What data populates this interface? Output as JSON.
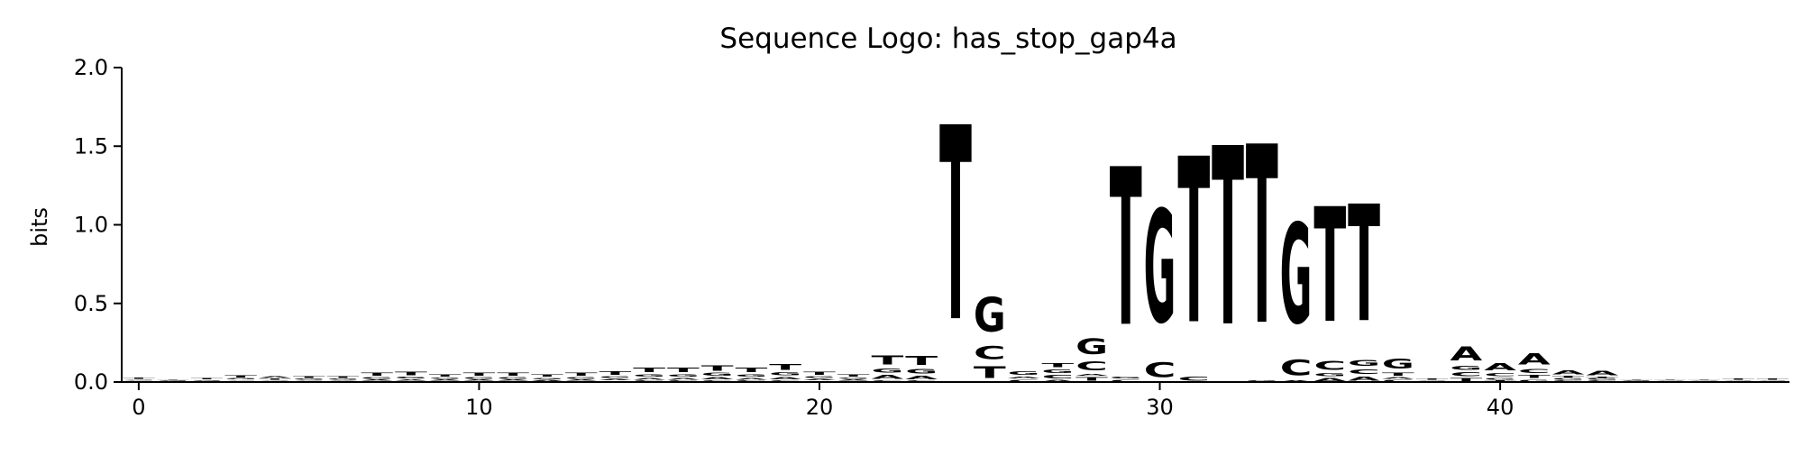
{
  "chart_data": {
    "type": "sequence-logo",
    "title": "Sequence Logo: has_stop_gap4a",
    "xlabel": "",
    "ylabel": "bits",
    "xlim": [
      -0.5,
      48.5
    ],
    "ylim": [
      0,
      2.0
    ],
    "xticks": [
      0,
      10,
      20,
      30,
      40
    ],
    "yticks": [
      0.0,
      0.5,
      1.0,
      1.5,
      2.0
    ],
    "xtick_labels": [
      "0",
      "10",
      "20",
      "30",
      "40"
    ],
    "ytick_labels": [
      "0.0",
      "0.5",
      "1.0",
      "1.5",
      "2.0"
    ],
    "colors": {
      "A": "#008000",
      "C": "#0000ff",
      "G": "#ffa500",
      "T": "#ff0000"
    },
    "positions": [
      {
        "x": 0,
        "letters": [
          [
            "A",
            0.005
          ],
          [
            "C",
            0.005
          ],
          [
            "G",
            0.008
          ],
          [
            "T",
            0.012
          ]
        ]
      },
      {
        "x": 1,
        "letters": [
          [
            "A",
            0.004
          ],
          [
            "C",
            0.004
          ],
          [
            "G",
            0.005
          ],
          [
            "T",
            0.008
          ]
        ]
      },
      {
        "x": 2,
        "letters": [
          [
            "A",
            0.004
          ],
          [
            "C",
            0.004
          ],
          [
            "G",
            0.006
          ],
          [
            "T",
            0.01
          ]
        ]
      },
      {
        "x": 3,
        "letters": [
          [
            "A",
            0.008
          ],
          [
            "C",
            0.006
          ],
          [
            "G",
            0.01
          ],
          [
            "T",
            0.022
          ]
        ]
      },
      {
        "x": 4,
        "letters": [
          [
            "C",
            0.005
          ],
          [
            "G",
            0.008
          ],
          [
            "T",
            0.01
          ],
          [
            "A",
            0.018
          ]
        ]
      },
      {
        "x": 5,
        "letters": [
          [
            "A",
            0.006
          ],
          [
            "C",
            0.006
          ],
          [
            "G",
            0.01
          ],
          [
            "T",
            0.02
          ]
        ]
      },
      {
        "x": 6,
        "letters": [
          [
            "C",
            0.005
          ],
          [
            "A",
            0.008
          ],
          [
            "G",
            0.01
          ],
          [
            "T",
            0.018
          ]
        ]
      },
      {
        "x": 7,
        "letters": [
          [
            "C",
            0.006
          ],
          [
            "A",
            0.012
          ],
          [
            "G",
            0.016
          ],
          [
            "T",
            0.03
          ]
        ]
      },
      {
        "x": 8,
        "letters": [
          [
            "C",
            0.006
          ],
          [
            "A",
            0.012
          ],
          [
            "G",
            0.018
          ],
          [
            "T",
            0.034
          ]
        ]
      },
      {
        "x": 9,
        "letters": [
          [
            "C",
            0.006
          ],
          [
            "A",
            0.01
          ],
          [
            "G",
            0.014
          ],
          [
            "T",
            0.024
          ]
        ]
      },
      {
        "x": 10,
        "letters": [
          [
            "C",
            0.006
          ],
          [
            "A",
            0.012
          ],
          [
            "G",
            0.016
          ],
          [
            "T",
            0.028
          ]
        ]
      },
      {
        "x": 11,
        "letters": [
          [
            "C",
            0.006
          ],
          [
            "A",
            0.012
          ],
          [
            "G",
            0.016
          ],
          [
            "T",
            0.028
          ]
        ]
      },
      {
        "x": 12,
        "letters": [
          [
            "C",
            0.005
          ],
          [
            "A",
            0.01
          ],
          [
            "G",
            0.014
          ],
          [
            "T",
            0.024
          ]
        ]
      },
      {
        "x": 13,
        "letters": [
          [
            "C",
            0.006
          ],
          [
            "A",
            0.012
          ],
          [
            "G",
            0.016
          ],
          [
            "T",
            0.028
          ]
        ]
      },
      {
        "x": 14,
        "letters": [
          [
            "C",
            0.008
          ],
          [
            "A",
            0.014
          ],
          [
            "G",
            0.018
          ],
          [
            "T",
            0.034
          ]
        ]
      },
      {
        "x": 15,
        "letters": [
          [
            "C",
            0.01
          ],
          [
            "A",
            0.018
          ],
          [
            "G",
            0.025
          ],
          [
            "T",
            0.048
          ]
        ]
      },
      {
        "x": 16,
        "letters": [
          [
            "C",
            0.01
          ],
          [
            "A",
            0.02
          ],
          [
            "G",
            0.025
          ],
          [
            "T",
            0.045
          ]
        ]
      },
      {
        "x": 17,
        "letters": [
          [
            "C",
            0.012
          ],
          [
            "A",
            0.022
          ],
          [
            "G",
            0.028
          ],
          [
            "T",
            0.052
          ]
        ]
      },
      {
        "x": 18,
        "letters": [
          [
            "C",
            0.01
          ],
          [
            "A",
            0.02
          ],
          [
            "G",
            0.025
          ],
          [
            "T",
            0.045
          ]
        ]
      },
      {
        "x": 19,
        "letters": [
          [
            "C",
            0.012
          ],
          [
            "A",
            0.024
          ],
          [
            "G",
            0.03
          ],
          [
            "T",
            0.058
          ]
        ]
      },
      {
        "x": 20,
        "letters": [
          [
            "C",
            0.008
          ],
          [
            "A",
            0.014
          ],
          [
            "G",
            0.018
          ],
          [
            "T",
            0.03
          ]
        ]
      },
      {
        "x": 21,
        "letters": [
          [
            "C",
            0.006
          ],
          [
            "A",
            0.01
          ],
          [
            "G",
            0.014
          ],
          [
            "T",
            0.024
          ]
        ]
      },
      {
        "x": 22,
        "letters": [
          [
            "C",
            0.012
          ],
          [
            "A",
            0.04
          ],
          [
            "G",
            0.04
          ],
          [
            "T",
            0.09
          ]
        ]
      },
      {
        "x": 23,
        "letters": [
          [
            "C",
            0.01
          ],
          [
            "A",
            0.035
          ],
          [
            "G",
            0.045
          ],
          [
            "T",
            0.09
          ]
        ]
      },
      {
        "x": 24,
        "letters": [
          [
            "T",
            1.98
          ]
        ]
      },
      {
        "x": 25,
        "letters": [
          [
            "T",
            0.12
          ],
          [
            "C",
            0.13
          ],
          [
            "G",
            0.35
          ]
        ]
      },
      {
        "x": 26,
        "letters": [
          [
            "C",
            0.02
          ],
          [
            "A",
            0.02
          ],
          [
            "G",
            0.035
          ]
        ]
      },
      {
        "x": 27,
        "letters": [
          [
            "A",
            0.015
          ],
          [
            "C",
            0.035
          ],
          [
            "G",
            0.035
          ],
          [
            "T",
            0.04
          ]
        ]
      },
      {
        "x": 28,
        "letters": [
          [
            "T",
            0.035
          ],
          [
            "A",
            0.02
          ],
          [
            "C",
            0.09
          ],
          [
            "G",
            0.16
          ]
        ]
      },
      {
        "x": 29,
        "letters": [
          [
            "C",
            0.02
          ],
          [
            "G",
            0.02
          ],
          [
            "T",
            1.61
          ]
        ]
      },
      {
        "x": 30,
        "letters": [
          [
            "C",
            0.15
          ],
          [
            "G",
            1.15
          ]
        ]
      },
      {
        "x": 31,
        "letters": [
          [
            "C",
            0.04
          ],
          [
            "T",
            1.69
          ]
        ]
      },
      {
        "x": 32,
        "letters": [
          [
            "T",
            1.82
          ]
        ]
      },
      {
        "x": 33,
        "letters": [
          [
            "G",
            0.01
          ],
          [
            "T",
            1.82
          ]
        ]
      },
      {
        "x": 34,
        "letters": [
          [
            "A",
            0.01
          ],
          [
            "C",
            0.16
          ],
          [
            "G",
            1.02
          ]
        ]
      },
      {
        "x": 35,
        "letters": [
          [
            "A",
            0.03
          ],
          [
            "G",
            0.03
          ],
          [
            "C",
            0.09
          ],
          [
            "T",
            1.17
          ]
        ]
      },
      {
        "x": 36,
        "letters": [
          [
            "A",
            0.04
          ],
          [
            "C",
            0.05
          ],
          [
            "G",
            0.06
          ],
          [
            "T",
            1.19
          ]
        ]
      },
      {
        "x": 37,
        "letters": [
          [
            "C",
            0.015
          ],
          [
            "A",
            0.02
          ],
          [
            "T",
            0.03
          ],
          [
            "G",
            0.1
          ]
        ]
      },
      {
        "x": 38,
        "letters": [
          [
            "A",
            0.005
          ],
          [
            "G",
            0.008
          ],
          [
            "T",
            0.01
          ]
        ]
      },
      {
        "x": 39,
        "letters": [
          [
            "T",
            0.03
          ],
          [
            "C",
            0.04
          ],
          [
            "G",
            0.04
          ],
          [
            "A",
            0.14
          ]
        ]
      },
      {
        "x": 40,
        "letters": [
          [
            "T",
            0.01
          ],
          [
            "G",
            0.02
          ],
          [
            "C",
            0.03
          ],
          [
            "A",
            0.07
          ]
        ]
      },
      {
        "x": 41,
        "letters": [
          [
            "G",
            0.02
          ],
          [
            "T",
            0.03
          ],
          [
            "C",
            0.04
          ],
          [
            "A",
            0.11
          ]
        ]
      },
      {
        "x": 42,
        "letters": [
          [
            "C",
            0.01
          ],
          [
            "G",
            0.015
          ],
          [
            "T",
            0.015
          ],
          [
            "A",
            0.04
          ]
        ]
      },
      {
        "x": 43,
        "letters": [
          [
            "C",
            0.01
          ],
          [
            "G",
            0.015
          ],
          [
            "T",
            0.01
          ],
          [
            "A",
            0.045
          ]
        ]
      },
      {
        "x": 44,
        "letters": [
          [
            "A",
            0.004
          ],
          [
            "C",
            0.004
          ],
          [
            "G",
            0.006
          ],
          [
            "T",
            0.008
          ]
        ]
      },
      {
        "x": 45,
        "letters": [
          [
            "A",
            0.003
          ],
          [
            "C",
            0.003
          ],
          [
            "G",
            0.004
          ],
          [
            "T",
            0.005
          ]
        ]
      },
      {
        "x": 46,
        "letters": [
          [
            "A",
            0.003
          ],
          [
            "C",
            0.003
          ],
          [
            "G",
            0.004
          ],
          [
            "T",
            0.005
          ]
        ]
      },
      {
        "x": 47,
        "letters": [
          [
            "A",
            0.003
          ],
          [
            "C",
            0.004
          ],
          [
            "G",
            0.006
          ],
          [
            "T",
            0.01
          ]
        ]
      },
      {
        "x": 48,
        "letters": [
          [
            "A",
            0.003
          ],
          [
            "C",
            0.004
          ],
          [
            "G",
            0.006
          ],
          [
            "T",
            0.01
          ]
        ]
      }
    ]
  }
}
